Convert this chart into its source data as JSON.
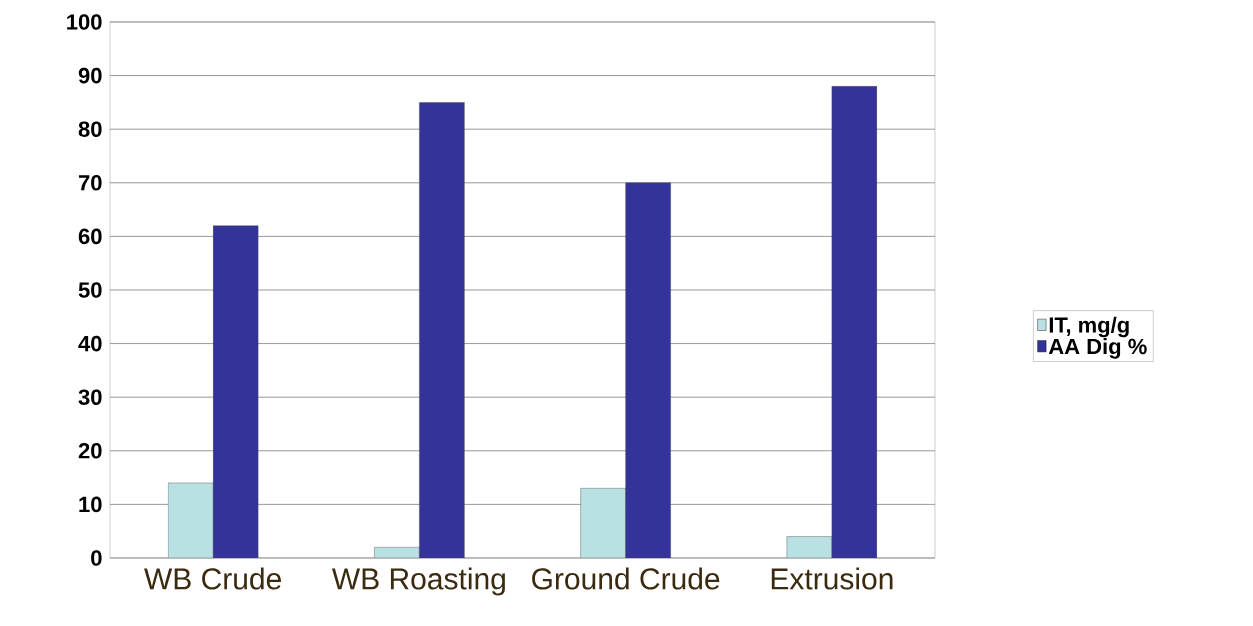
{
  "chart_data": {
    "type": "bar",
    "categories": [
      "WB Crude",
      "WB Roasting",
      "Ground Crude",
      "Extrusion"
    ],
    "series": [
      {
        "name": "IT, mg/g",
        "color": "#b9e0e3",
        "values": [
          14,
          2,
          13,
          4
        ]
      },
      {
        "name": "AA Dig %",
        "color": "#333399",
        "values": [
          62,
          85,
          70,
          88
        ]
      }
    ],
    "ylim": [
      0,
      100
    ],
    "yticks": [
      0,
      10,
      20,
      30,
      40,
      50,
      60,
      70,
      80,
      90,
      100
    ],
    "grid": "y",
    "legend": "right"
  }
}
